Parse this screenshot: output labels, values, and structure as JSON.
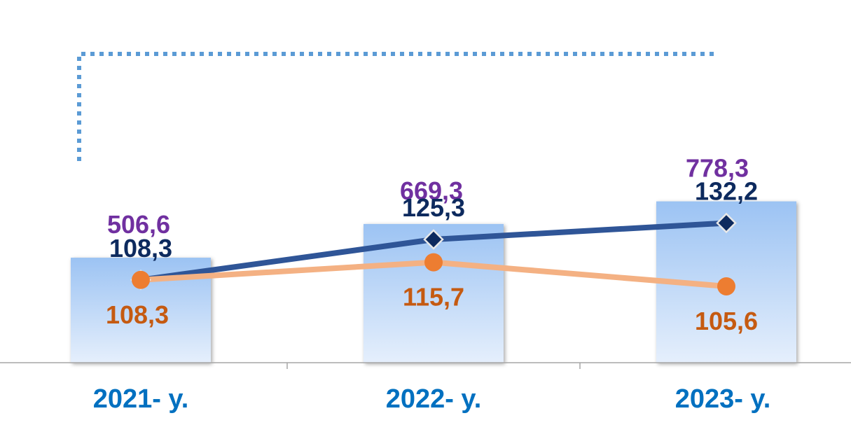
{
  "chart_data": {
    "type": "bar",
    "categories": [
      "2021- y.",
      "2022- y.",
      "2023- y."
    ],
    "bars": {
      "values": [
        506.6,
        669.3,
        778.3
      ],
      "labels": [
        "506,6",
        "669,3",
        "778,3"
      ]
    },
    "series": [
      {
        "values": [
          108.3,
          125.3,
          132.2
        ],
        "labels": [
          "108,3",
          "125,3",
          "132,2"
        ],
        "marker": "diamond"
      },
      {
        "values": [
          108.3,
          115.7,
          105.6
        ],
        "labels": [
          "108,3",
          "115,7",
          "105,6"
        ],
        "marker": "circle"
      }
    ],
    "legend": "none",
    "grid": false
  },
  "colors": {
    "bar_top": "#9cc3f3",
    "bar_bottom": "#e5effc",
    "bar_label": "#7030a0",
    "series1_line": "#2f5597",
    "series1_marker": "#0d2a5e",
    "series1_label": "#0d2a5e",
    "series2_line": "#f4b183",
    "series2_marker": "#ed7d31",
    "series2_label": "#c55a11",
    "category_label": "#0070c0",
    "axis": "#a6a6a6",
    "bracket": "#5b9bd5"
  }
}
